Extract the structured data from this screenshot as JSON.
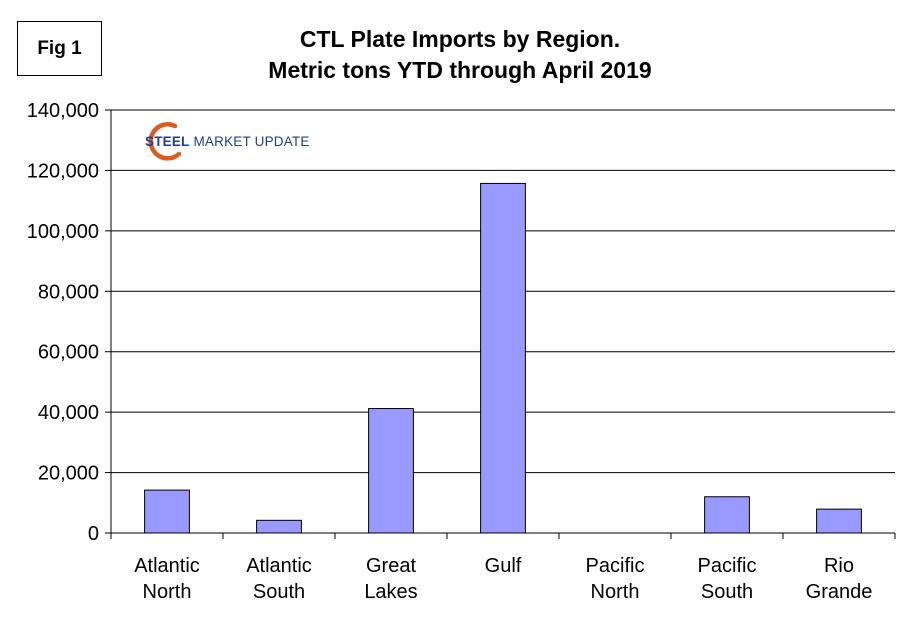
{
  "figure": {
    "label": "Fig 1"
  },
  "logo": {
    "word1": "STEEL",
    "word2": "MARKET UPDATE",
    "color_primary": "#1f3f8f",
    "color_accent": "#e05a1c"
  },
  "chart_data": {
    "type": "bar",
    "title": "CTL Plate Imports by Region.",
    "subtitle": "Metric tons YTD through April 2019",
    "xlabel": "",
    "ylabel": "",
    "categories": [
      [
        "Atlantic",
        "North"
      ],
      [
        "Atlantic",
        "South"
      ],
      [
        "Great",
        "Lakes"
      ],
      [
        "Gulf"
      ],
      [
        "Pacific",
        "North"
      ],
      [
        "Pacific",
        "South"
      ],
      [
        "Rio",
        "Grande"
      ]
    ],
    "values": [
      14200,
      4200,
      41200,
      115700,
      0,
      12000,
      7900
    ],
    "ylim": [
      0,
      140000
    ],
    "yticks": [
      0,
      20000,
      40000,
      60000,
      80000,
      100000,
      120000,
      140000
    ],
    "ytick_labels": [
      "0",
      "20,000",
      "40,000",
      "60,000",
      "80,000",
      "100,000",
      "120,000",
      "140,000"
    ],
    "grid": true,
    "bar_color": "#9999ff",
    "bar_edge_color": "#000000",
    "grid_color": "#000000"
  }
}
